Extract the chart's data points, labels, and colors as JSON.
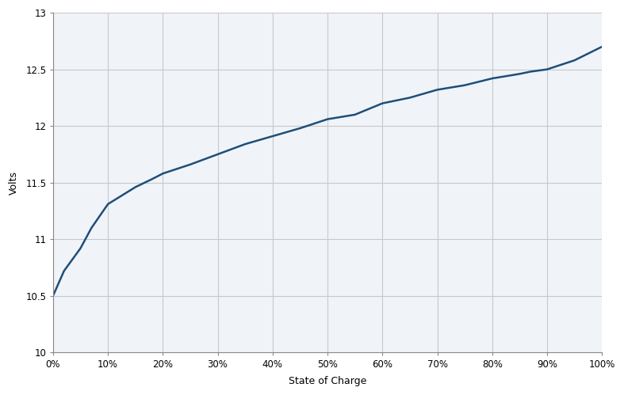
{
  "title": "",
  "xlabel": "State of Charge",
  "ylabel": "Volts",
  "xlim": [
    0,
    1
  ],
  "ylim": [
    10,
    13
  ],
  "yticks": [
    10,
    10.5,
    11,
    11.5,
    12,
    12.5,
    13
  ],
  "ytick_labels": [
    "10",
    "10.5",
    "11",
    "11.5",
    "12",
    "12.5",
    "13"
  ],
  "xticks": [
    0,
    0.1,
    0.2,
    0.3,
    0.4,
    0.5,
    0.6,
    0.7,
    0.8,
    0.9,
    1.0
  ],
  "line_color": "#1f4e79",
  "background_color": "#ffffff",
  "plot_bg_color": "#f0f4f8",
  "grid_color": "#c8c8c8",
  "soc": [
    0,
    0.02,
    0.05,
    0.07,
    0.1,
    0.13,
    0.15,
    0.18,
    0.2,
    0.25,
    0.3,
    0.35,
    0.4,
    0.45,
    0.5,
    0.55,
    0.6,
    0.65,
    0.7,
    0.75,
    0.8,
    0.85,
    0.87,
    0.9,
    0.95,
    1.0
  ],
  "voltage": [
    10.5,
    10.72,
    10.92,
    11.1,
    11.31,
    11.4,
    11.46,
    11.53,
    11.58,
    11.66,
    11.75,
    11.84,
    11.91,
    11.98,
    12.06,
    12.1,
    12.2,
    12.25,
    12.32,
    12.36,
    12.42,
    12.46,
    12.48,
    12.5,
    12.58,
    12.7
  ]
}
